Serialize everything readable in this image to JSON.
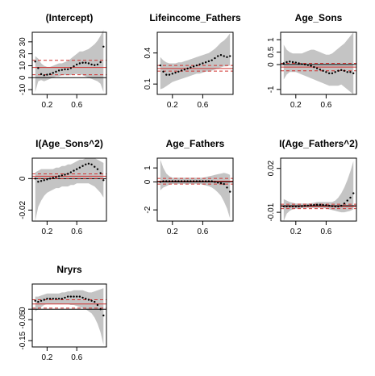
{
  "chart_data": [
    {
      "type": "area",
      "title": "(Intercept)",
      "xlabel": "",
      "ylabel": "",
      "xlim": [
        0,
        1
      ],
      "ylim": [
        -14,
        38
      ],
      "x_ticks": [
        0.2,
        0.6
      ],
      "y_ticks": [
        -10,
        0,
        10,
        20,
        30
      ],
      "grid": false,
      "legend": "none",
      "reference_lines": {
        "zero": 0,
        "ols": 8.5,
        "ols_ci": [
          2.5,
          14.5
        ]
      },
      "series": [
        {
          "x": [
            0.04,
            0.08,
            0.12,
            0.16,
            0.2,
            0.24,
            0.28,
            0.32,
            0.36,
            0.4,
            0.44,
            0.48,
            0.52,
            0.56,
            0.6,
            0.64,
            0.68,
            0.72,
            0.76,
            0.8,
            0.84,
            0.88,
            0.92,
            0.96
          ],
          "estimate": [
            13.5,
            8,
            3,
            2,
            2.5,
            3,
            4,
            5,
            6,
            6.5,
            7,
            7,
            8,
            9.5,
            11,
            12,
            12.5,
            12.5,
            12,
            11,
            10.5,
            11,
            13,
            26
          ],
          "lower": [
            -12,
            -3,
            -2,
            -3,
            -2,
            -1,
            0,
            1,
            1,
            2,
            2,
            2,
            2,
            3,
            3,
            3,
            2,
            1,
            0,
            -1,
            -2,
            -3,
            -5,
            -12
          ],
          "upper": [
            18,
            16,
            12,
            10,
            9,
            9,
            10,
            11,
            12,
            12,
            13,
            14,
            16,
            18,
            20,
            22,
            22,
            23,
            24,
            26,
            28,
            31,
            35,
            40
          ]
        }
      ]
    },
    {
      "type": "area",
      "title": "Lifeincome_Fathers",
      "xlabel": "",
      "ylabel": "",
      "xlim": [
        0,
        1
      ],
      "ylim": [
        0.0,
        0.6
      ],
      "x_ticks": [
        0.2,
        0.6
      ],
      "y_ticks": [
        0.1,
        0.4
      ],
      "grid": false,
      "legend": "none",
      "reference_lines": {
        "zero": 0,
        "ols": 0.25,
        "ols_ci": [
          0.225,
          0.28
        ]
      },
      "series": [
        {
          "x": [
            0.04,
            0.08,
            0.12,
            0.16,
            0.2,
            0.24,
            0.28,
            0.32,
            0.36,
            0.4,
            0.44,
            0.48,
            0.52,
            0.56,
            0.6,
            0.64,
            0.68,
            0.72,
            0.76,
            0.8,
            0.84,
            0.88,
            0.92,
            0.96
          ],
          "estimate": [
            0.28,
            0.22,
            0.19,
            0.19,
            0.2,
            0.21,
            0.22,
            0.23,
            0.24,
            0.25,
            0.26,
            0.27,
            0.28,
            0.29,
            0.3,
            0.31,
            0.32,
            0.33,
            0.35,
            0.37,
            0.38,
            0.37,
            0.36,
            0.37
          ],
          "lower": [
            0.05,
            0.06,
            0.08,
            0.1,
            0.12,
            0.13,
            0.14,
            0.15,
            0.16,
            0.17,
            0.18,
            0.19,
            0.2,
            0.2,
            0.21,
            0.22,
            0.22,
            0.23,
            0.24,
            0.25,
            0.26,
            0.27,
            0.27,
            0.28
          ],
          "upper": [
            0.36,
            0.33,
            0.31,
            0.3,
            0.3,
            0.3,
            0.31,
            0.31,
            0.32,
            0.33,
            0.34,
            0.35,
            0.36,
            0.37,
            0.38,
            0.39,
            0.4,
            0.42,
            0.44,
            0.47,
            0.5,
            0.52,
            0.55,
            0.59
          ]
        }
      ]
    },
    {
      "type": "area",
      "title": "Age_Sons",
      "xlabel": "",
      "ylabel": "",
      "xlim": [
        0,
        1
      ],
      "ylim": [
        -1.2,
        1.3
      ],
      "x_ticks": [
        0.2,
        0.6
      ],
      "y_ticks": [
        -1.0,
        0.0,
        0.5,
        1.0
      ],
      "grid": false,
      "legend": "none",
      "reference_lines": {
        "zero": 0,
        "ols": -0.1,
        "ols_ci": [
          -0.25,
          0.05
        ]
      },
      "series": [
        {
          "x": [
            0.04,
            0.08,
            0.12,
            0.16,
            0.2,
            0.24,
            0.28,
            0.32,
            0.36,
            0.4,
            0.44,
            0.48,
            0.52,
            0.56,
            0.6,
            0.64,
            0.68,
            0.72,
            0.76,
            0.8,
            0.84,
            0.88,
            0.92,
            0.96
          ],
          "estimate": [
            0.05,
            0.1,
            0.12,
            0.1,
            0.08,
            0.05,
            0.02,
            0.0,
            -0.02,
            -0.05,
            -0.1,
            -0.15,
            -0.2,
            -0.25,
            -0.3,
            -0.35,
            -0.35,
            -0.3,
            -0.25,
            -0.22,
            -0.25,
            -0.3,
            -0.3,
            -0.35
          ],
          "lower": [
            -0.6,
            -0.4,
            -0.3,
            -0.3,
            -0.3,
            -0.35,
            -0.4,
            -0.45,
            -0.5,
            -0.55,
            -0.6,
            -0.65,
            -0.7,
            -0.75,
            -0.8,
            -0.85,
            -0.85,
            -0.85,
            -0.85,
            -0.8,
            -0.9,
            -1.0,
            -1.1,
            -1.2
          ],
          "upper": [
            0.8,
            0.6,
            0.5,
            0.45,
            0.45,
            0.45,
            0.45,
            0.5,
            0.55,
            0.6,
            0.6,
            0.55,
            0.5,
            0.45,
            0.4,
            0.4,
            0.45,
            0.55,
            0.65,
            0.75,
            0.85,
            1.0,
            1.15,
            1.3
          ]
        }
      ]
    },
    {
      "type": "area",
      "title": "I(Age_Sons^2)",
      "xlabel": "",
      "ylabel": "",
      "xlim": [
        0,
        1
      ],
      "ylim": [
        -0.027,
        0.013
      ],
      "x_ticks": [
        0.2,
        0.6
      ],
      "y_ticks": [
        -0.02,
        0.0
      ],
      "grid": false,
      "legend": "none",
      "reference_lines": {
        "zero": 0,
        "ols": 0.0015,
        "ols_ci": [
          0.0,
          0.003
        ]
      },
      "series": [
        {
          "x": [
            0.04,
            0.08,
            0.12,
            0.16,
            0.2,
            0.24,
            0.28,
            0.32,
            0.36,
            0.4,
            0.44,
            0.48,
            0.52,
            0.56,
            0.6,
            0.64,
            0.68,
            0.72,
            0.76,
            0.8,
            0.84,
            0.88,
            0.92,
            0.96
          ],
          "estimate": [
            0.0,
            -0.002,
            -0.0015,
            -0.001,
            -0.0005,
            0.0,
            0.0005,
            0.001,
            0.0015,
            0.002,
            0.0025,
            0.003,
            0.004,
            0.005,
            0.006,
            0.007,
            0.008,
            0.009,
            0.0095,
            0.009,
            0.0075,
            0.006,
            0.0035,
            -0.001
          ],
          "lower": [
            -0.027,
            -0.018,
            -0.014,
            -0.011,
            -0.009,
            -0.008,
            -0.007,
            -0.006,
            -0.006,
            -0.005,
            -0.005,
            -0.005,
            -0.004,
            -0.004,
            -0.003,
            -0.003,
            -0.003,
            -0.003,
            -0.003,
            -0.004,
            -0.005,
            -0.007,
            -0.009,
            -0.012
          ],
          "upper": [
            0.004,
            0.005,
            0.006,
            0.006,
            0.006,
            0.006,
            0.006,
            0.007,
            0.007,
            0.008,
            0.008,
            0.009,
            0.009,
            0.01,
            0.011,
            0.012,
            0.012,
            0.013,
            0.013,
            0.013,
            0.013,
            0.012,
            0.011,
            0.01
          ]
        }
      ]
    },
    {
      "type": "area",
      "title": "Age_Fathers",
      "xlabel": "",
      "ylabel": "",
      "xlim": [
        0,
        1
      ],
      "ylim": [
        -2.8,
        1.7
      ],
      "x_ticks": [
        0.2,
        0.6
      ],
      "y_ticks": [
        -2,
        0,
        1
      ],
      "grid": false,
      "legend": "none",
      "reference_lines": {
        "zero": 0,
        "ols": 0.05,
        "ols_ci": [
          -0.15,
          0.25
        ]
      },
      "series": [
        {
          "x": [
            0.04,
            0.08,
            0.12,
            0.16,
            0.2,
            0.24,
            0.28,
            0.32,
            0.36,
            0.4,
            0.44,
            0.48,
            0.52,
            0.56,
            0.6,
            0.64,
            0.68,
            0.72,
            0.76,
            0.8,
            0.84,
            0.88,
            0.92,
            0.96
          ],
          "estimate": [
            0.0,
            0.05,
            0.05,
            0.05,
            0.05,
            0.05,
            0.05,
            0.05,
            0.05,
            0.05,
            0.05,
            0.05,
            0.05,
            0.05,
            0.05,
            0.05,
            0.05,
            0.05,
            0.0,
            -0.05,
            -0.1,
            -0.15,
            -0.4,
            -0.7
          ],
          "lower": [
            -0.6,
            -0.4,
            -0.3,
            -0.2,
            -0.15,
            -0.15,
            -0.15,
            -0.15,
            -0.15,
            -0.15,
            -0.15,
            -0.15,
            -0.15,
            -0.15,
            -0.2,
            -0.25,
            -0.3,
            -0.4,
            -0.55,
            -0.75,
            -1.0,
            -1.4,
            -1.9,
            -2.6
          ],
          "upper": [
            1.6,
            1.0,
            0.6,
            0.4,
            0.3,
            0.3,
            0.3,
            0.3,
            0.3,
            0.3,
            0.3,
            0.3,
            0.3,
            0.3,
            0.3,
            0.35,
            0.4,
            0.45,
            0.5,
            0.55,
            0.6,
            0.65,
            0.6,
            0.5
          ]
        }
      ]
    },
    {
      "type": "area",
      "title": "I(Age_Fathers^2)",
      "xlabel": "",
      "ylabel": "",
      "xlim": [
        0,
        1
      ],
      "ylim": [
        -0.016,
        0.027
      ],
      "x_ticks": [
        0.2,
        0.6
      ],
      "y_ticks": [
        -0.01,
        0.02
      ],
      "grid": false,
      "legend": "none",
      "reference_lines": {
        "zero": -0.0055,
        "ols": -0.006,
        "ols_ci": [
          -0.0075,
          -0.0045
        ]
      },
      "series": [
        {
          "x": [
            0.04,
            0.08,
            0.12,
            0.16,
            0.2,
            0.24,
            0.28,
            0.32,
            0.36,
            0.4,
            0.44,
            0.48,
            0.52,
            0.56,
            0.6,
            0.64,
            0.68,
            0.72,
            0.76,
            0.8,
            0.84,
            0.88,
            0.92,
            0.96
          ],
          "estimate": [
            -0.006,
            -0.006,
            -0.006,
            -0.006,
            -0.006,
            -0.006,
            -0.0058,
            -0.0056,
            -0.0054,
            -0.0052,
            -0.005,
            -0.0048,
            -0.0048,
            -0.005,
            -0.0052,
            -0.0055,
            -0.0058,
            -0.006,
            -0.006,
            -0.0055,
            -0.004,
            -0.002,
            0.0,
            0.003
          ],
          "lower": [
            -0.016,
            -0.011,
            -0.009,
            -0.008,
            -0.0075,
            -0.0075,
            -0.0072,
            -0.007,
            -0.007,
            -0.007,
            -0.007,
            -0.007,
            -0.007,
            -0.007,
            -0.0075,
            -0.008,
            -0.0085,
            -0.009,
            -0.0095,
            -0.01,
            -0.01,
            -0.0095,
            -0.009,
            -0.008
          ],
          "upper": [
            -0.001,
            -0.002,
            -0.003,
            -0.0035,
            -0.004,
            -0.004,
            -0.004,
            -0.004,
            -0.004,
            -0.0038,
            -0.0035,
            -0.003,
            -0.003,
            -0.003,
            -0.003,
            -0.003,
            -0.003,
            -0.002,
            0.0,
            0.003,
            0.007,
            0.012,
            0.018,
            0.025
          ]
        }
      ]
    },
    {
      "type": "area",
      "title": "Nryrs",
      "xlabel": "",
      "ylabel": "",
      "xlim": [
        0,
        1
      ],
      "ylim": [
        -0.18,
        0.12
      ],
      "x_ticks": [
        0.2,
        0.6
      ],
      "y_ticks": [
        -0.15,
        -0.05,
        0.0
      ],
      "grid": false,
      "legend": "none",
      "reference_lines": {
        "zero": 0,
        "ols": 0.025,
        "ols_ci": [
          0.005,
          0.045
        ]
      },
      "series": [
        {
          "x": [
            0.04,
            0.08,
            0.12,
            0.16,
            0.2,
            0.24,
            0.28,
            0.32,
            0.36,
            0.4,
            0.44,
            0.48,
            0.52,
            0.56,
            0.6,
            0.64,
            0.68,
            0.72,
            0.76,
            0.8,
            0.84,
            0.88,
            0.92,
            0.96
          ],
          "estimate": [
            0.04,
            0.035,
            0.04,
            0.045,
            0.05,
            0.05,
            0.05,
            0.05,
            0.05,
            0.05,
            0.055,
            0.06,
            0.06,
            0.06,
            0.06,
            0.06,
            0.055,
            0.05,
            0.045,
            0.04,
            0.035,
            0.02,
            0.0,
            -0.03
          ],
          "lower": [
            -0.01,
            0.0,
            0.01,
            0.02,
            0.025,
            0.025,
            0.025,
            0.025,
            0.025,
            0.025,
            0.025,
            0.025,
            0.02,
            0.02,
            0.015,
            0.01,
            0.005,
            0.0,
            -0.01,
            -0.02,
            -0.04,
            -0.07,
            -0.11,
            -0.17
          ],
          "upper": [
            0.06,
            0.06,
            0.065,
            0.07,
            0.075,
            0.075,
            0.075,
            0.075,
            0.075,
            0.08,
            0.08,
            0.085,
            0.085,
            0.09,
            0.09,
            0.09,
            0.09,
            0.085,
            0.08,
            0.08,
            0.085,
            0.09,
            0.095,
            0.1
          ]
        }
      ]
    }
  ]
}
